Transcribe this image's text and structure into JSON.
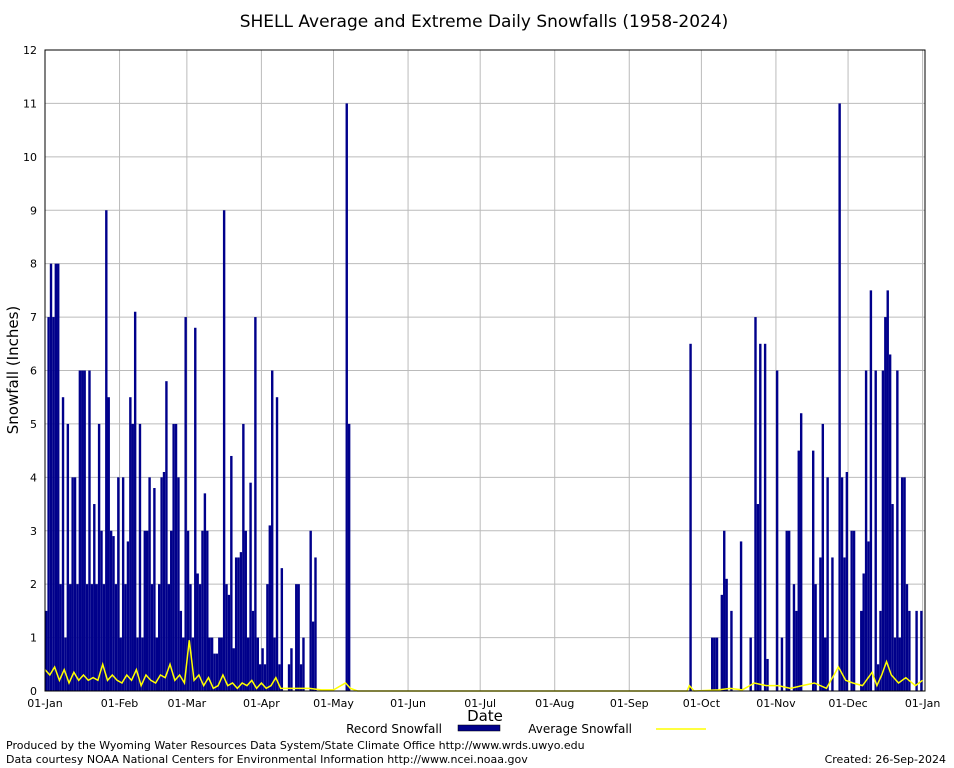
{
  "chart_data": {
    "type": "bar-line",
    "title": "SHELL Average and Extreme Daily Snowfalls (1958-2024)",
    "x_label": "Date",
    "y_label": "Snowfall (Inches)",
    "xlim": [
      0,
      366
    ],
    "xticks": [
      {
        "value": 0,
        "label": "01-Jan"
      },
      {
        "value": 31,
        "label": "01-Feb"
      },
      {
        "value": 59,
        "label": "01-Mar"
      },
      {
        "value": 90,
        "label": "01-Apr"
      },
      {
        "value": 120,
        "label": "01-May"
      },
      {
        "value": 151,
        "label": "01-Jun"
      },
      {
        "value": 181,
        "label": "01-Jul"
      },
      {
        "value": 212,
        "label": "01-Aug"
      },
      {
        "value": 243,
        "label": "01-Sep"
      },
      {
        "value": 273,
        "label": "01-Oct"
      },
      {
        "value": 304,
        "label": "01-Nov"
      },
      {
        "value": 334,
        "label": "01-Dec"
      },
      {
        "value": 365,
        "label": "01-Jan"
      }
    ],
    "ylim": [
      0,
      12
    ],
    "yticks": [
      0,
      1,
      2,
      3,
      4,
      5,
      6,
      7,
      8,
      9,
      10,
      11,
      12
    ],
    "grid": true,
    "series": [
      {
        "name": "Record Snowfall",
        "kind": "bar",
        "color": "#00008b",
        "x": [
          0,
          1,
          2,
          3,
          4,
          5,
          6,
          7,
          8,
          9,
          10,
          11,
          12,
          13,
          14,
          15,
          16,
          17,
          18,
          19,
          20,
          21,
          22,
          23,
          24,
          25,
          26,
          27,
          28,
          29,
          30,
          31,
          32,
          33,
          34,
          35,
          36,
          37,
          38,
          39,
          40,
          41,
          42,
          43,
          44,
          45,
          46,
          47,
          48,
          49,
          50,
          51,
          52,
          53,
          54,
          55,
          56,
          57,
          58,
          59,
          60,
          61,
          62,
          63,
          64,
          65,
          66,
          67,
          68,
          69,
          70,
          71,
          72,
          73,
          74,
          75,
          76,
          77,
          78,
          79,
          80,
          81,
          82,
          83,
          84,
          85,
          86,
          87,
          88,
          89,
          90,
          91,
          92,
          93,
          94,
          95,
          96,
          97,
          98,
          101,
          102,
          104,
          105,
          106,
          107,
          110,
          111,
          112,
          125,
          126,
          268,
          277,
          278,
          279,
          281,
          282,
          283,
          285,
          289,
          293,
          295,
          296,
          297,
          299,
          300,
          304,
          306,
          308,
          309,
          311,
          312,
          313,
          314,
          319,
          320,
          322,
          323,
          324,
          325,
          327,
          330,
          331,
          332,
          333,
          335,
          336,
          339,
          340,
          341,
          342,
          343,
          345,
          346,
          347,
          348,
          349,
          350,
          351,
          352,
          353,
          354,
          355,
          356,
          357,
          358,
          359,
          362,
          364
        ],
        "values": [
          1.5,
          7,
          8,
          7,
          8,
          8,
          2,
          5.5,
          1,
          5,
          2,
          4,
          4,
          2,
          6,
          6,
          6,
          2,
          6,
          2,
          3.5,
          2,
          5,
          3,
          2,
          9,
          5.5,
          3,
          2.9,
          2,
          4,
          1,
          4,
          2,
          2.8,
          5.5,
          5,
          7.1,
          1,
          5,
          1,
          3,
          3,
          4,
          2,
          3.8,
          1,
          2,
          4,
          4.1,
          5.8,
          2,
          3,
          5,
          5,
          4,
          1.5,
          1,
          7,
          3,
          2,
          1,
          6.8,
          2.2,
          2,
          3,
          3.7,
          3,
          1,
          1,
          0.7,
          0.7,
          1,
          1,
          9,
          2,
          1.8,
          4.4,
          0.8,
          2.5,
          2.5,
          2.6,
          5,
          3,
          1,
          3.9,
          1.5,
          7,
          1,
          0.5,
          0.8,
          0.5,
          2,
          3.1,
          6,
          1,
          5.5,
          0.5,
          2.3,
          0.5,
          0.8,
          2,
          2,
          0.5,
          1,
          3,
          1.3,
          2.5,
          11,
          5,
          6.5,
          1,
          1,
          1,
          1.8,
          3,
          2.1,
          1.5,
          2.8,
          1,
          7,
          3.5,
          6.5,
          6.5,
          0.6,
          6,
          1,
          3,
          3,
          2,
          1.5,
          4.5,
          5.2,
          4.5,
          2,
          2.5,
          5,
          1,
          4,
          2.5,
          11,
          4,
          2.5,
          4.1,
          3,
          3,
          1.5,
          2.2,
          6,
          2.8,
          7.5,
          6,
          0.5,
          1.5,
          6,
          7,
          7.5,
          6.3,
          3.5,
          1,
          6,
          1,
          4,
          4,
          2,
          1.5,
          1.5,
          1.5
        ]
      },
      {
        "name": "Average Snowfall",
        "kind": "line",
        "color": "#ffff00",
        "x": [
          0,
          2,
          4,
          6,
          8,
          10,
          12,
          14,
          16,
          18,
          20,
          22,
          24,
          26,
          28,
          30,
          32,
          34,
          36,
          38,
          40,
          42,
          44,
          46,
          48,
          50,
          52,
          54,
          56,
          58,
          60,
          62,
          64,
          66,
          68,
          70,
          72,
          74,
          76,
          78,
          80,
          82,
          84,
          86,
          88,
          90,
          92,
          94,
          96,
          98,
          100,
          105,
          110,
          115,
          120,
          125,
          127,
          130,
          267,
          268,
          270,
          280,
          285,
          290,
          295,
          300,
          305,
          310,
          315,
          320,
          325,
          330,
          333,
          336,
          340,
          344,
          346,
          348,
          350,
          352,
          355,
          358,
          362,
          365
        ],
        "values": [
          0.4,
          0.3,
          0.45,
          0.2,
          0.4,
          0.15,
          0.35,
          0.2,
          0.3,
          0.2,
          0.25,
          0.2,
          0.5,
          0.2,
          0.3,
          0.2,
          0.15,
          0.3,
          0.2,
          0.4,
          0.1,
          0.3,
          0.2,
          0.15,
          0.3,
          0.25,
          0.5,
          0.2,
          0.3,
          0.15,
          0.95,
          0.2,
          0.3,
          0.1,
          0.25,
          0.05,
          0.1,
          0.3,
          0.1,
          0.15,
          0.05,
          0.15,
          0.1,
          0.2,
          0.05,
          0.15,
          0.05,
          0.1,
          0.25,
          0.05,
          0.05,
          0.05,
          0.05,
          0.02,
          0.02,
          0.15,
          0.05,
          0,
          0,
          0.1,
          0,
          0.02,
          0.05,
          0.02,
          0.15,
          0.1,
          0.1,
          0.05,
          0.1,
          0.15,
          0.05,
          0.45,
          0.2,
          0.15,
          0.1,
          0.35,
          0.1,
          0.3,
          0.55,
          0.3,
          0.15,
          0.25,
          0.1,
          0.2
        ]
      }
    ],
    "footer_left_1": "Produced by the Wyoming Water Resources Data System/State Climate Office http://www.wrds.uwyo.edu",
    "footer_left_2": "Data courtesy NOAA National Centers for Environmental Information http://www.ncei.noaa.gov",
    "footer_right": "Created:  26-Sep-2024"
  }
}
